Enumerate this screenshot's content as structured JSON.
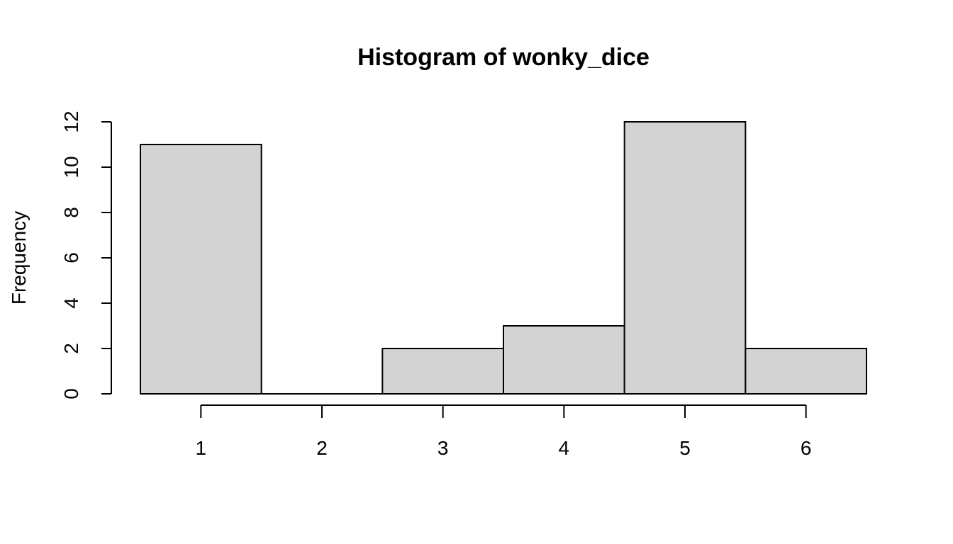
{
  "chart_data": {
    "type": "bar",
    "title": "Histogram of wonky_dice",
    "xlabel": "",
    "ylabel": "Frequency",
    "x_ticks": [
      "1",
      "2",
      "3",
      "4",
      "5",
      "6"
    ],
    "y_ticks": [
      "0",
      "2",
      "4",
      "6",
      "8",
      "10",
      "12"
    ],
    "bins": [
      {
        "from": 0.5,
        "to": 1.5,
        "count": 11
      },
      {
        "from": 1.5,
        "to": 2.5,
        "count": 0
      },
      {
        "from": 2.5,
        "to": 3.5,
        "count": 2
      },
      {
        "from": 3.5,
        "to": 4.5,
        "count": 3
      },
      {
        "from": 4.5,
        "to": 5.5,
        "count": 12
      },
      {
        "from": 5.5,
        "to": 6.5,
        "count": 2
      }
    ],
    "xlim": [
      0.5,
      6.5
    ],
    "ylim": [
      0,
      12
    ],
    "grid": false,
    "bar_color": "#d3d3d3",
    "edge_color": "#000000"
  }
}
